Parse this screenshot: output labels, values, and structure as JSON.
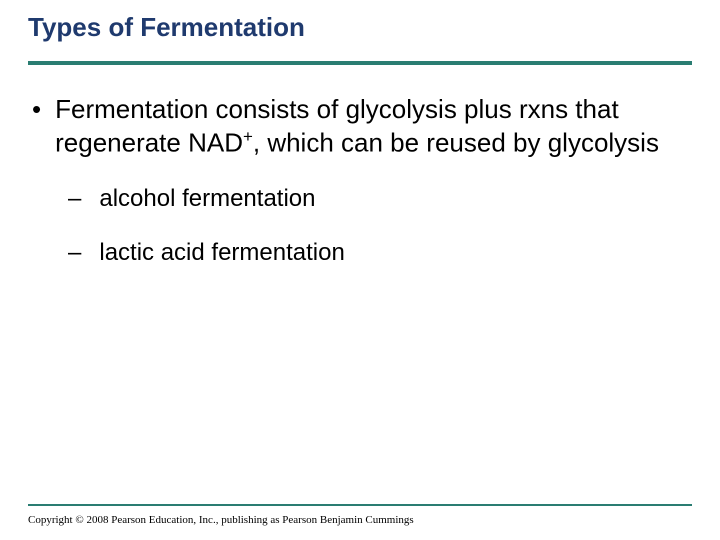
{
  "title": "Types of Fermentation",
  "main_bullet": {
    "pre": "Fermentation consists of glycolysis plus rxns that regenerate NAD",
    "sup": "+",
    "post": ", which can be reused by glycolysis"
  },
  "sub_items": [
    "alcohol fermentation",
    "lactic acid fermentation"
  ],
  "copyright": "Copyright © 2008 Pearson Education, Inc., publishing as Pearson Benjamin Cummings",
  "colors": {
    "title": "#1f3a6e",
    "rule": "#2a7d72",
    "text": "#000000",
    "background": "#ffffff"
  }
}
